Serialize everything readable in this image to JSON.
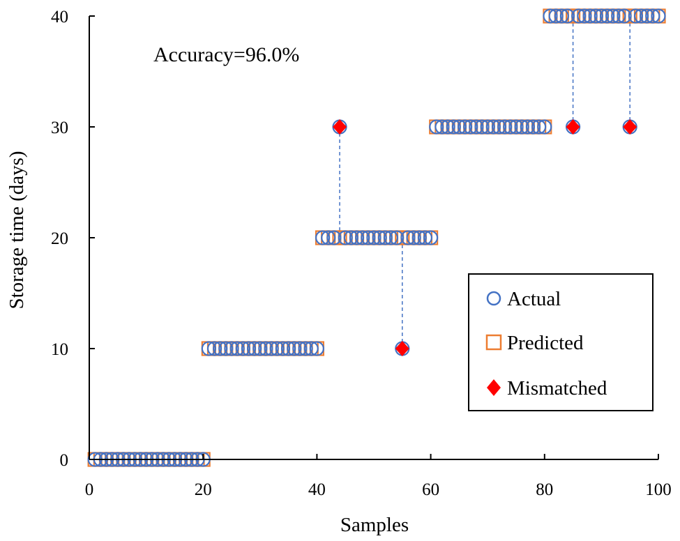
{
  "chart_data": {
    "type": "scatter",
    "title": "",
    "xlabel": "Samples",
    "ylabel": "Storage time (days)",
    "xlim": [
      0,
      100
    ],
    "ylim": [
      0,
      40
    ],
    "x_ticks": [
      0,
      20,
      40,
      60,
      80,
      100
    ],
    "y_ticks": [
      0,
      10,
      20,
      30,
      40
    ],
    "x_tick_labels": [
      "0",
      "20",
      "40",
      "60",
      "80",
      "100"
    ],
    "y_tick_labels": [
      "0",
      "10",
      "20",
      "30",
      "40"
    ],
    "grid": false,
    "legend_position": "right",
    "annotation": "Accuracy=96.0%",
    "series": [
      {
        "name": "Actual",
        "marker": "circle-open",
        "color": "#4472C4",
        "x": [
          1,
          2,
          3,
          4,
          5,
          6,
          7,
          8,
          9,
          10,
          11,
          12,
          13,
          14,
          15,
          16,
          17,
          18,
          19,
          20,
          21,
          22,
          23,
          24,
          25,
          26,
          27,
          28,
          29,
          30,
          31,
          32,
          33,
          34,
          35,
          36,
          37,
          38,
          39,
          40,
          41,
          42,
          43,
          44,
          45,
          46,
          47,
          48,
          49,
          50,
          51,
          52,
          53,
          54,
          55,
          56,
          57,
          58,
          59,
          60,
          61,
          62,
          63,
          64,
          65,
          66,
          67,
          68,
          69,
          70,
          71,
          72,
          73,
          74,
          75,
          76,
          77,
          78,
          79,
          80,
          81,
          82,
          83,
          84,
          85,
          86,
          87,
          88,
          89,
          90,
          91,
          92,
          93,
          94,
          95,
          96,
          97,
          98,
          99,
          100
        ],
        "y": [
          0,
          0,
          0,
          0,
          0,
          0,
          0,
          0,
          0,
          0,
          0,
          0,
          0,
          0,
          0,
          0,
          0,
          0,
          0,
          0,
          10,
          10,
          10,
          10,
          10,
          10,
          10,
          10,
          10,
          10,
          10,
          10,
          10,
          10,
          10,
          10,
          10,
          10,
          10,
          10,
          20,
          20,
          20,
          30,
          20,
          20,
          20,
          20,
          20,
          20,
          20,
          20,
          20,
          20,
          10,
          20,
          20,
          20,
          20,
          20,
          30,
          30,
          30,
          30,
          30,
          30,
          30,
          30,
          30,
          30,
          30,
          30,
          30,
          30,
          30,
          30,
          30,
          30,
          30,
          30,
          40,
          40,
          40,
          40,
          30,
          40,
          40,
          40,
          40,
          40,
          40,
          40,
          40,
          40,
          30,
          40,
          40,
          40,
          40,
          40
        ]
      },
      {
        "name": "Predicted",
        "marker": "square-open",
        "color": "#ED7D31",
        "x": [
          1,
          2,
          3,
          4,
          5,
          6,
          7,
          8,
          9,
          10,
          11,
          12,
          13,
          14,
          15,
          16,
          17,
          18,
          19,
          20,
          21,
          22,
          23,
          24,
          25,
          26,
          27,
          28,
          29,
          30,
          31,
          32,
          33,
          34,
          35,
          36,
          37,
          38,
          39,
          40,
          41,
          42,
          43,
          44,
          45,
          46,
          47,
          48,
          49,
          50,
          51,
          52,
          53,
          54,
          55,
          56,
          57,
          58,
          59,
          60,
          61,
          62,
          63,
          64,
          65,
          66,
          67,
          68,
          69,
          70,
          71,
          72,
          73,
          74,
          75,
          76,
          77,
          78,
          79,
          80,
          81,
          82,
          83,
          84,
          85,
          86,
          87,
          88,
          89,
          90,
          91,
          92,
          93,
          94,
          95,
          96,
          97,
          98,
          99,
          100
        ],
        "y": [
          0,
          0,
          0,
          0,
          0,
          0,
          0,
          0,
          0,
          0,
          0,
          0,
          0,
          0,
          0,
          0,
          0,
          0,
          0,
          0,
          10,
          10,
          10,
          10,
          10,
          10,
          10,
          10,
          10,
          10,
          10,
          10,
          10,
          10,
          10,
          10,
          10,
          10,
          10,
          10,
          20,
          20,
          20,
          20,
          20,
          20,
          20,
          20,
          20,
          20,
          20,
          20,
          20,
          20,
          20,
          20,
          20,
          20,
          20,
          20,
          30,
          30,
          30,
          30,
          30,
          30,
          30,
          30,
          30,
          30,
          30,
          30,
          30,
          30,
          30,
          30,
          30,
          30,
          30,
          30,
          40,
          40,
          40,
          40,
          40,
          40,
          40,
          40,
          40,
          40,
          40,
          40,
          40,
          40,
          40,
          40,
          40,
          40,
          40,
          40
        ]
      },
      {
        "name": "Mismatched",
        "marker": "diamond-filled",
        "color": "#FF0000",
        "x": [
          44,
          55,
          85,
          95
        ],
        "y": [
          30,
          10,
          30,
          30
        ],
        "predicted_y": [
          20,
          20,
          40,
          40
        ]
      }
    ]
  }
}
